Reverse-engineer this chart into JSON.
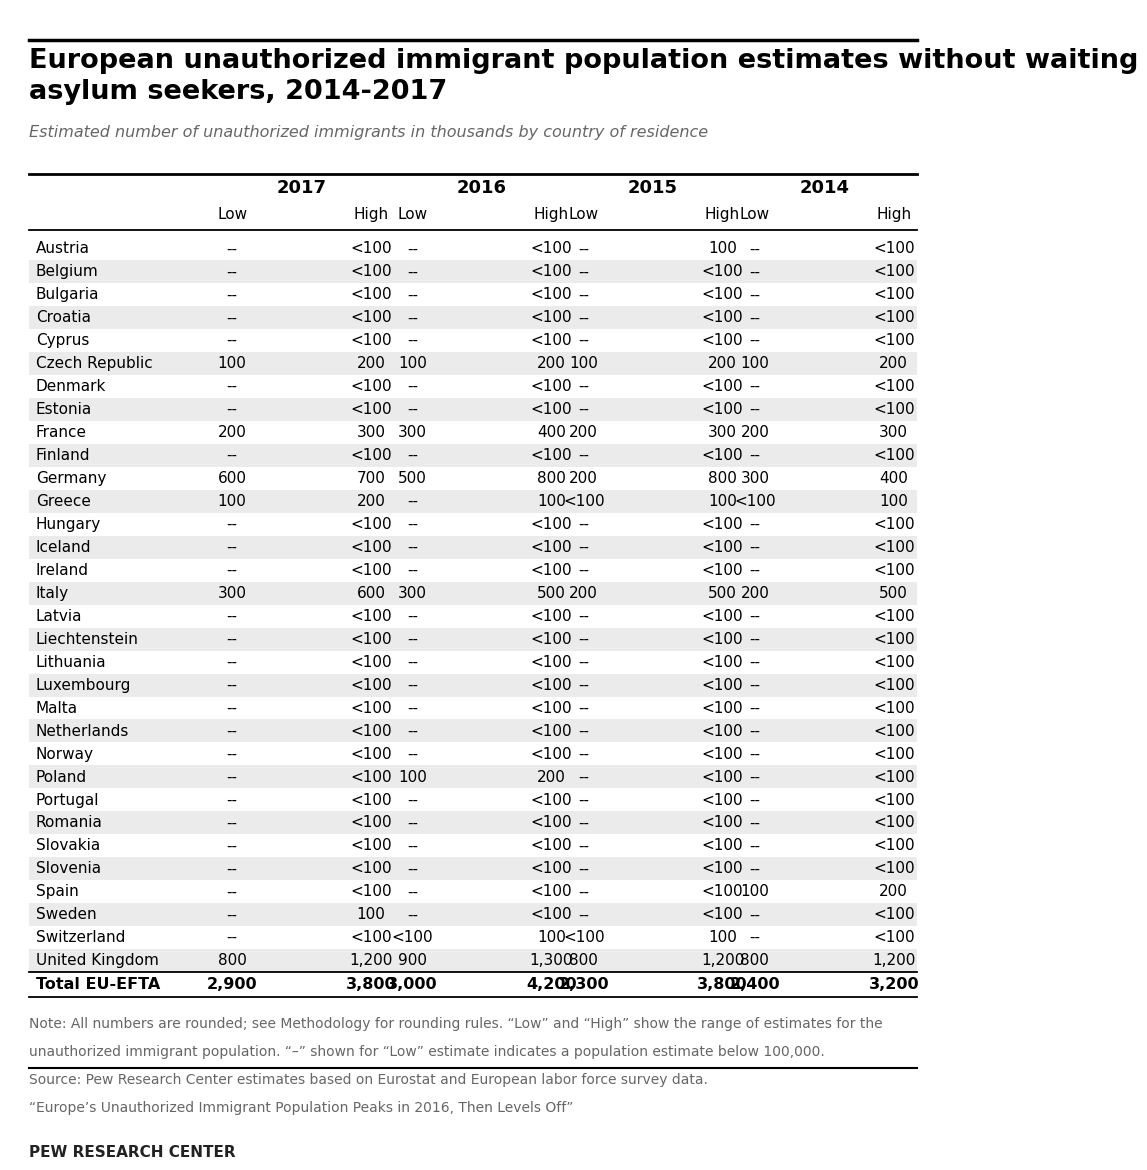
{
  "title": "European unauthorized immigrant population estimates without waiting\nasylum seekers, 2014-2017",
  "subtitle": "Estimated number of unauthorized immigrants in thousands by country of residence",
  "years": [
    "2017",
    "2016",
    "2015",
    "2014"
  ],
  "col_headers": [
    "Low",
    "High",
    "Low",
    "High",
    "Low",
    "High",
    "Low",
    "High"
  ],
  "countries": [
    "Austria",
    "Belgium",
    "Bulgaria",
    "Croatia",
    "Cyprus",
    "Czech Republic",
    "Denmark",
    "Estonia",
    "France",
    "Finland",
    "Germany",
    "Greece",
    "Hungary",
    "Iceland",
    "Ireland",
    "Italy",
    "Latvia",
    "Liechtenstein",
    "Lithuania",
    "Luxembourg",
    "Malta",
    "Netherlands",
    "Norway",
    "Poland",
    "Portugal",
    "Romania",
    "Slovakia",
    "Slovenia",
    "Spain",
    "Sweden",
    "Switzerland",
    "United Kingdom"
  ],
  "data": [
    [
      "--",
      "<100",
      "--",
      "<100",
      "--",
      "100",
      "--",
      "<100"
    ],
    [
      "--",
      "<100",
      "--",
      "<100",
      "--",
      "<100",
      "--",
      "<100"
    ],
    [
      "--",
      "<100",
      "--",
      "<100",
      "--",
      "<100",
      "--",
      "<100"
    ],
    [
      "--",
      "<100",
      "--",
      "<100",
      "--",
      "<100",
      "--",
      "<100"
    ],
    [
      "--",
      "<100",
      "--",
      "<100",
      "--",
      "<100",
      "--",
      "<100"
    ],
    [
      "100",
      "200",
      "100",
      "200",
      "100",
      "200",
      "100",
      "200"
    ],
    [
      "--",
      "<100",
      "--",
      "<100",
      "--",
      "<100",
      "--",
      "<100"
    ],
    [
      "--",
      "<100",
      "--",
      "<100",
      "--",
      "<100",
      "--",
      "<100"
    ],
    [
      "200",
      "300",
      "300",
      "400",
      "200",
      "300",
      "200",
      "300"
    ],
    [
      "--",
      "<100",
      "--",
      "<100",
      "--",
      "<100",
      "--",
      "<100"
    ],
    [
      "600",
      "700",
      "500",
      "800",
      "200",
      "800",
      "300",
      "400"
    ],
    [
      "100",
      "200",
      "--",
      "100",
      "<100",
      "100",
      "<100",
      "100"
    ],
    [
      "--",
      "<100",
      "--",
      "<100",
      "--",
      "<100",
      "--",
      "<100"
    ],
    [
      "--",
      "<100",
      "--",
      "<100",
      "--",
      "<100",
      "--",
      "<100"
    ],
    [
      "--",
      "<100",
      "--",
      "<100",
      "--",
      "<100",
      "--",
      "<100"
    ],
    [
      "300",
      "600",
      "300",
      "500",
      "200",
      "500",
      "200",
      "500"
    ],
    [
      "--",
      "<100",
      "--",
      "<100",
      "--",
      "<100",
      "--",
      "<100"
    ],
    [
      "--",
      "<100",
      "--",
      "<100",
      "--",
      "<100",
      "--",
      "<100"
    ],
    [
      "--",
      "<100",
      "--",
      "<100",
      "--",
      "<100",
      "--",
      "<100"
    ],
    [
      "--",
      "<100",
      "--",
      "<100",
      "--",
      "<100",
      "--",
      "<100"
    ],
    [
      "--",
      "<100",
      "--",
      "<100",
      "--",
      "<100",
      "--",
      "<100"
    ],
    [
      "--",
      "<100",
      "--",
      "<100",
      "--",
      "<100",
      "--",
      "<100"
    ],
    [
      "--",
      "<100",
      "--",
      "<100",
      "--",
      "<100",
      "--",
      "<100"
    ],
    [
      "--",
      "<100",
      "100",
      "200",
      "--",
      "<100",
      "--",
      "<100"
    ],
    [
      "--",
      "<100",
      "--",
      "<100",
      "--",
      "<100",
      "--",
      "<100"
    ],
    [
      "--",
      "<100",
      "--",
      "<100",
      "--",
      "<100",
      "--",
      "<100"
    ],
    [
      "--",
      "<100",
      "--",
      "<100",
      "--",
      "<100",
      "--",
      "<100"
    ],
    [
      "--",
      "<100",
      "--",
      "<100",
      "--",
      "<100",
      "--",
      "<100"
    ],
    [
      "--",
      "<100",
      "--",
      "<100",
      "--",
      "<100",
      "100",
      "200"
    ],
    [
      "--",
      "100",
      "--",
      "<100",
      "--",
      "<100",
      "--",
      "<100"
    ],
    [
      "--",
      "<100",
      "<100",
      "100",
      "<100",
      "100",
      "--",
      "<100"
    ],
    [
      "800",
      "1,200",
      "900",
      "1,300",
      "800",
      "1,200",
      "800",
      "1,200"
    ]
  ],
  "total_row": [
    "Total EU-EFTA",
    "2,900",
    "3,800",
    "3,000",
    "4,200",
    "2,300",
    "3,800",
    "2,400",
    "3,200"
  ],
  "notes": [
    "Note: All numbers are rounded; see Methodology for rounding rules. “Low” and “High” show the range of estimates for the",
    "unauthorized immigrant population. “–” shown for “Low” estimate indicates a population estimate below 100,000.",
    "Source: Pew Research Center estimates based on Eurostat and European labor force survey data.",
    "“Europe’s Unauthorized Immigrant Population Peaks in 2016, Then Levels Off”"
  ],
  "footer": "PEW RESEARCH CENTER",
  "bg_color_even": "#ebebeb",
  "bg_color_odd": "#ffffff"
}
